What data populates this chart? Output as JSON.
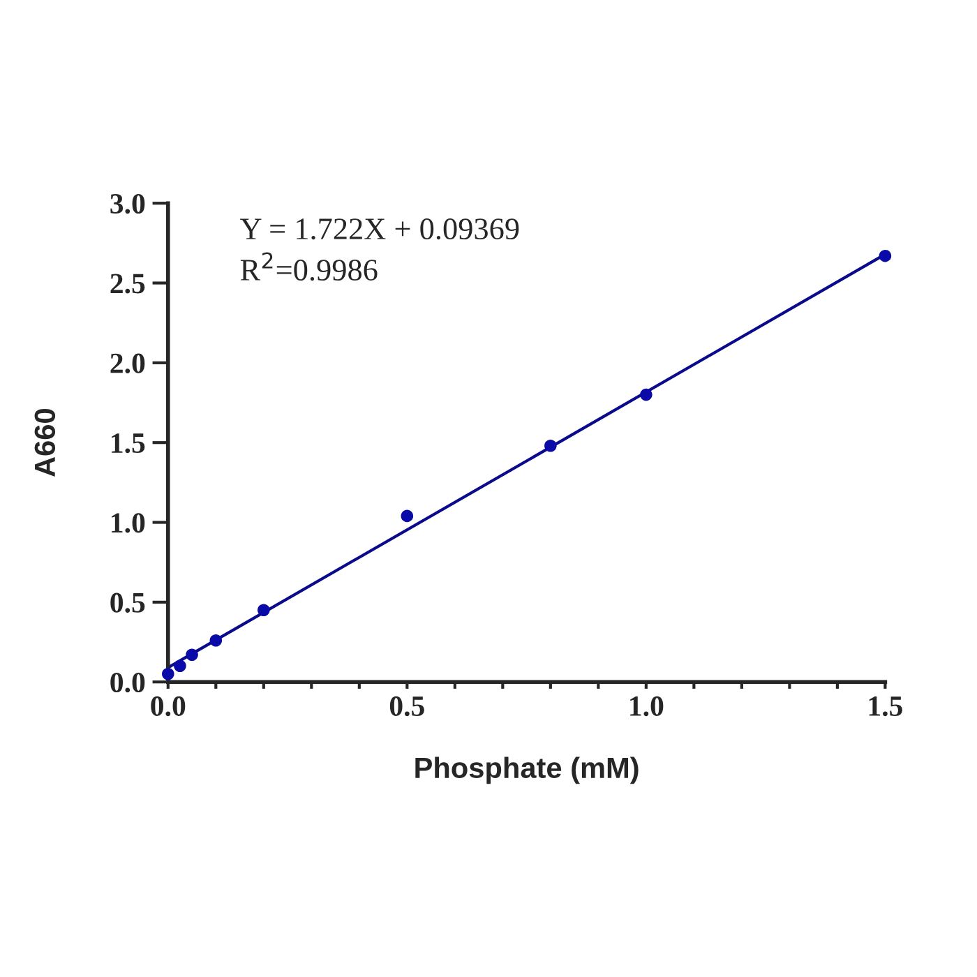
{
  "chart_data": {
    "type": "scatter",
    "xlabel": "Phosphate (mM)",
    "ylabel": "A660",
    "annotations": [
      "Y = 1.722X + 0.09369",
      "R$^{2}$=0.9986"
    ],
    "series": [
      {
        "color": "#0a0aa8",
        "marker": "circle",
        "x": [
          0,
          0.025,
          0.05,
          0.1,
          0.2,
          0.5,
          0.8,
          1.0,
          1.5
        ],
        "values": [
          0.05,
          0.1,
          0.17,
          0.26,
          0.45,
          1.04,
          1.48,
          1.8,
          2.67
        ]
      },
      {
        "type": "line",
        "color": "#0a0a8c",
        "line_style": "solid",
        "x": [
          0,
          1.5
        ],
        "values": [
          0.09,
          2.68
        ]
      }
    ],
    "xlim": [
      0,
      1.5
    ],
    "ylim": [
      0,
      3.0
    ],
    "xticks": [
      {
        "value": 0,
        "label": "0.0"
      },
      {
        "value": 0.1,
        "label": null
      },
      {
        "value": 0.2,
        "label": null
      },
      {
        "value": 0.3,
        "label": null
      },
      {
        "value": 0.4,
        "label": null
      },
      0.5,
      {
        "value": 0.6,
        "label": null
      },
      {
        "value": 0.7,
        "label": null
      },
      {
        "value": 0.8,
        "label": null
      },
      {
        "value": 0.9,
        "label": null
      },
      {
        "value": 1.0,
        "label": "1.0"
      },
      {
        "value": 1.1,
        "label": null
      },
      {
        "value": 1.2,
        "label": null
      },
      {
        "value": 1.3,
        "label": null
      },
      {
        "value": 1.4,
        "label": null
      },
      1.5
    ],
    "yticks": [
      {
        "value": 0,
        "label": "0.0"
      },
      0.5,
      {
        "value": 1.0,
        "label": "1.0"
      },
      1.5,
      {
        "value": 2.0,
        "label": "2.0"
      },
      2.5,
      {
        "value": 3.0,
        "label": "3.0"
      }
    ],
    "grid": false,
    "legend": false
  }
}
